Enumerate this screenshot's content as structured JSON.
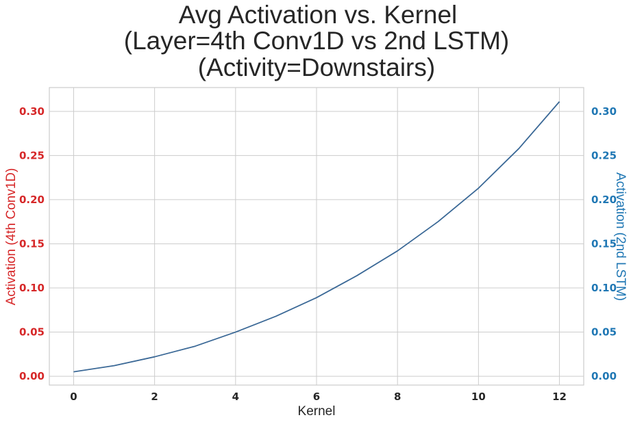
{
  "chart_data": {
    "type": "line",
    "title": [
      "Avg Activation vs. Kernel",
      "(Layer=4th Conv1D vs 2nd LSTM)",
      "(Activity=Downstairs)"
    ],
    "xlabel": "Kernel",
    "ylabel_left": "Activation (4th Conv1D)",
    "ylabel_right": "Activation (2nd LSTM)",
    "xlim": [
      -0.6,
      12.6
    ],
    "ylim_left": [
      -0.01,
      0.327
    ],
    "ylim_right": [
      -0.01,
      0.327
    ],
    "x_ticks": [
      0,
      2,
      4,
      6,
      8,
      10,
      12
    ],
    "y_ticks_left": [
      "0.00",
      "0.05",
      "0.10",
      "0.15",
      "0.20",
      "0.25",
      "0.30"
    ],
    "y_ticks_right": [
      "0.00",
      "0.05",
      "0.10",
      "0.15",
      "0.20",
      "0.25",
      "0.30"
    ],
    "grid": true,
    "colors": {
      "left_axis": "#d62728",
      "right_axis": "#1f77b4",
      "line": "#3a6896",
      "grid": "#cccccc",
      "spine": "#cccccc"
    },
    "x": [
      0,
      1,
      2,
      3,
      4,
      5,
      6,
      7,
      8,
      9,
      10,
      11,
      12
    ],
    "series": [
      {
        "axis": "right",
        "values": [
          0.005,
          0.012,
          0.022,
          0.034,
          0.05,
          0.068,
          0.089,
          0.114,
          0.142,
          0.175,
          0.213,
          0.258,
          0.311
        ]
      }
    ]
  }
}
